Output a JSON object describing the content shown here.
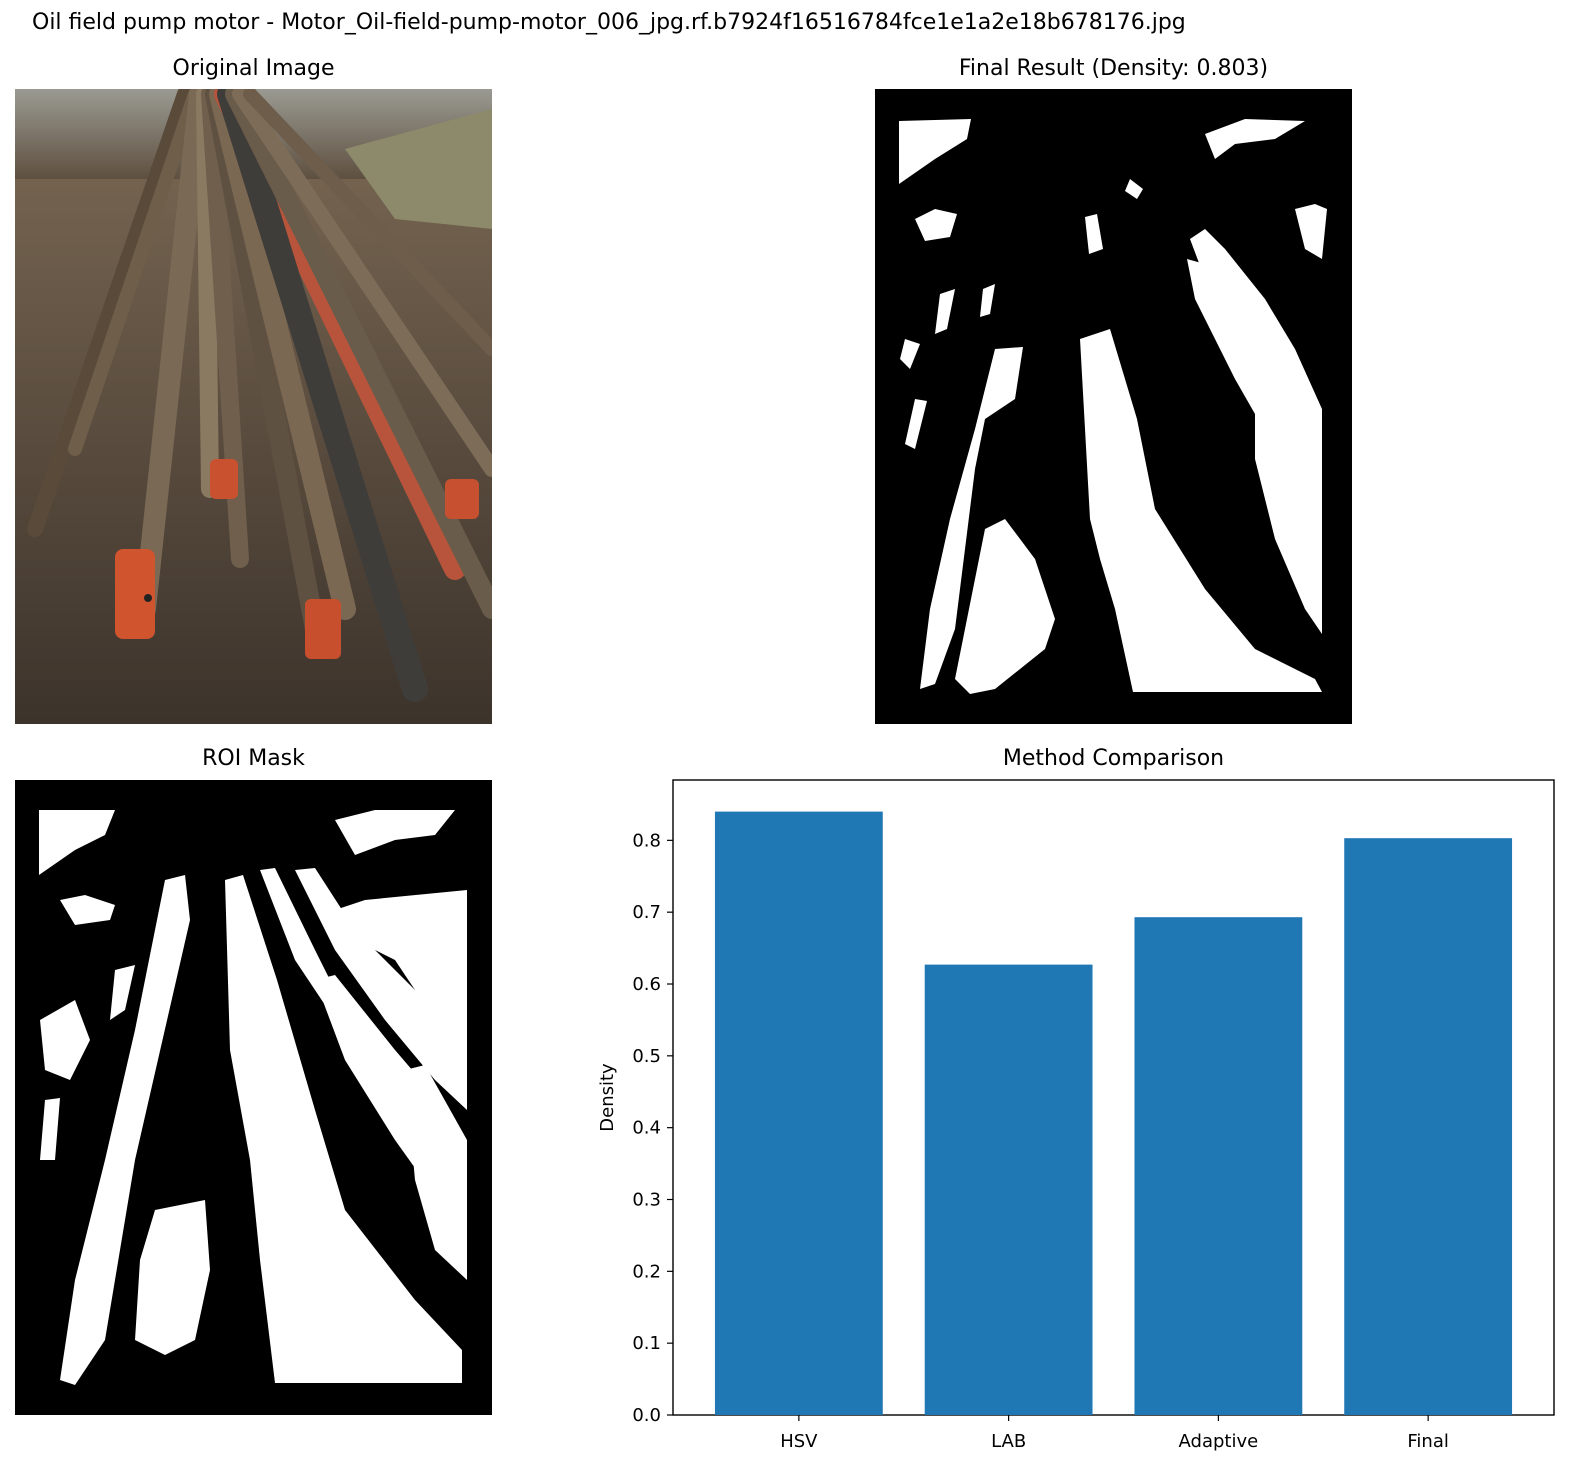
{
  "figure": {
    "suptitle": "Oil field pump motor - Motor_Oil-field-pump-motor_006_jpg.rf.b7924f16516784fce1e1a2e18b678176.jpg"
  },
  "panels": {
    "original": {
      "title": "Original Image"
    },
    "final": {
      "title": "Final Result (Density: 0.803)"
    },
    "roi": {
      "title": "ROI Mask"
    },
    "comparison": {
      "title": "Method Comparison"
    }
  },
  "chart_data": {
    "type": "bar",
    "title": "Method Comparison",
    "categories": [
      "HSV",
      "LAB",
      "Adaptive",
      "Final"
    ],
    "values": [
      0.84,
      0.627,
      0.693,
      0.803
    ],
    "xlabel": "",
    "ylabel": "Density",
    "ylim": [
      0,
      0.884
    ],
    "yticks": [
      0.0,
      0.1,
      0.2,
      0.3,
      0.4,
      0.5,
      0.6,
      0.7,
      0.8
    ],
    "bar_color": "#1f77b4",
    "grid": false
  }
}
